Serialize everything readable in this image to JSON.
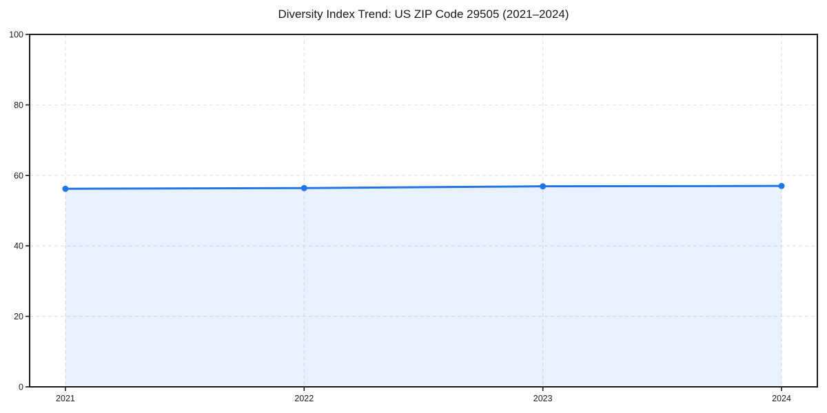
{
  "figure": {
    "title": "Diversity Index Trend: US ZIP Code 29505 (2021–2024)"
  },
  "chart_data": {
    "type": "line",
    "title": "Diversity Index Trend: US ZIP Code 29505 (2021–2024)",
    "categories": [
      "2021",
      "2022",
      "2023",
      "2024"
    ],
    "series": [
      {
        "name": "Diversity Index",
        "values": [
          56.2,
          56.4,
          56.9,
          57.0
        ]
      }
    ],
    "xlabel": "",
    "ylabel": "",
    "ylim": [
      0,
      100
    ],
    "y_ticks": [
      0,
      20,
      40,
      60,
      80,
      100
    ],
    "grid": {
      "visible": true,
      "style": "dashed"
    },
    "legend": "none",
    "area_fill": true,
    "markers": true,
    "colors": {
      "line": "#2176e6",
      "fill": "#2176e6",
      "fill_opacity": 0.1,
      "grid": "#dedede",
      "axis": "#1a1a1a",
      "tick_text": "#1a1a1a",
      "title_text": "#171717",
      "background": "#ffffff"
    }
  }
}
